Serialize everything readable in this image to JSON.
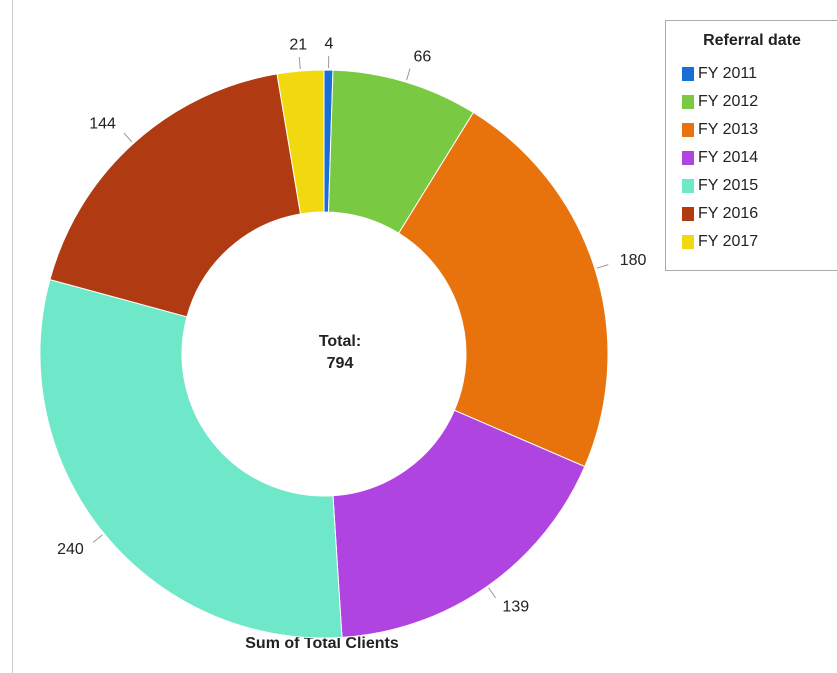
{
  "chart_data": {
    "type": "donut",
    "title": "Sum of Total Clients",
    "categories": [
      "FY 2011",
      "FY 2012",
      "FY 2013",
      "FY 2014",
      "FY 2015",
      "FY 2016",
      "FY 2017"
    ],
    "values": [
      4,
      66,
      180,
      139,
      240,
      144,
      21
    ],
    "colors": [
      "#1a6fd6",
      "#7ac943",
      "#e8730c",
      "#b044e0",
      "#6ee8c8",
      "#b03a12",
      "#f2d90f"
    ],
    "legend_title": "Referral date",
    "center_label": "Total:",
    "total": 794
  }
}
